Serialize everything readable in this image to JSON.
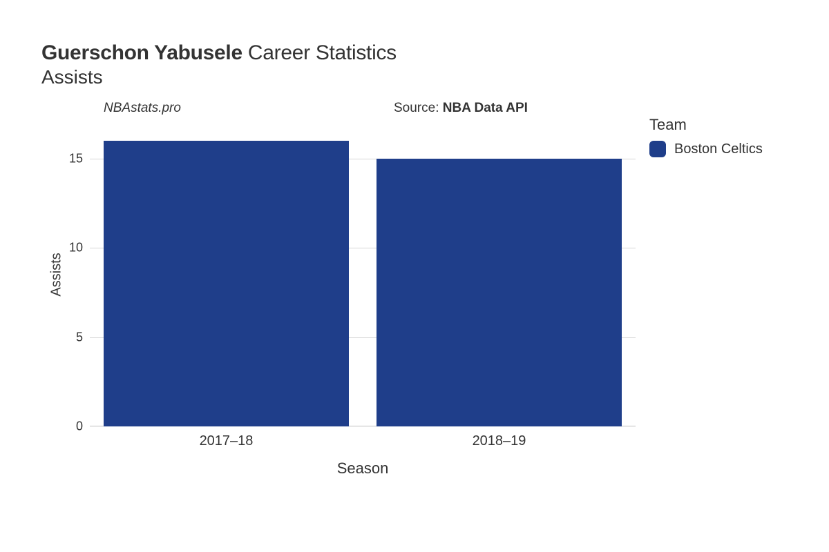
{
  "title": {
    "player_name": "Guerschon Yabusele",
    "suffix": " Career Statistics",
    "subtitle": "Assists",
    "title_fontsize": 30,
    "subtitle_fontsize": 28,
    "title_color": "#333333"
  },
  "annotations": {
    "left_text": "NBAstats.pro",
    "right_prefix": "Source: ",
    "right_source": "NBA Data API",
    "fontsize": 19
  },
  "chart": {
    "type": "bar",
    "categories": [
      "2017–18",
      "2018–19"
    ],
    "values": [
      16,
      15
    ],
    "bar_colors": [
      "#1f3e8a",
      "#1f3e8a"
    ],
    "bar_width_ratio": 0.9,
    "ylabel": "Assists",
    "xlabel": "Season",
    "label_fontsize": 20,
    "xlabel_fontsize": 22,
    "ylim": [
      0,
      17
    ],
    "yticks": [
      0,
      5,
      10,
      15
    ],
    "tick_fontsize": 18,
    "xtick_fontsize": 20,
    "grid_color": "#d6d6d6",
    "baseline_color": "#bdbdbd",
    "background_color": "#ffffff"
  },
  "legend": {
    "title": "Team",
    "title_fontsize": 22,
    "items": [
      {
        "label": "Boston Celtics",
        "color": "#1f3e8a"
      }
    ],
    "label_fontsize": 20,
    "swatch_radius": 6
  }
}
